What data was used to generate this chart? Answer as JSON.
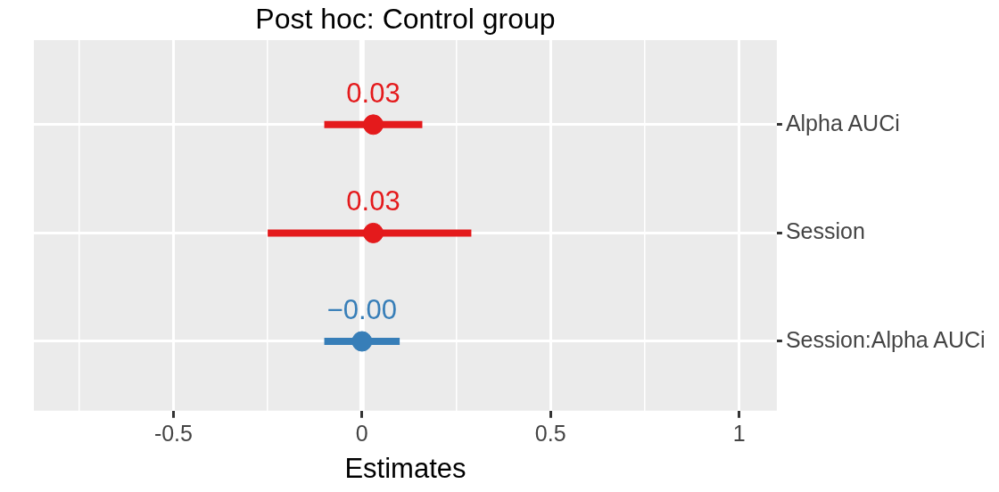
{
  "chart_data": {
    "type": "scatter",
    "orientation": "horizontal",
    "title": "Post hoc: Control group",
    "xlabel": "Estimates",
    "categories": [
      "Alpha AUCi",
      "Session",
      "Session:Alpha AUCi"
    ],
    "values": [
      0.03,
      0.03,
      0
    ],
    "errors": [
      [
        -0.1,
        0.16
      ],
      [
        -0.25,
        0.29
      ],
      [
        -0.1,
        0.1
      ]
    ],
    "value_labels": [
      "0.03",
      "0.03",
      "−0.00"
    ],
    "colors": [
      "#e41a1c",
      "#e41a1c",
      "#377eb8"
    ],
    "xlim": [
      -0.87,
      1.1
    ],
    "xticks": [
      {
        "value": -0.75,
        "label": null
      },
      -0.5,
      {
        "value": -0.25,
        "label": null
      },
      0,
      {
        "value": 0.25,
        "label": null
      },
      0.5,
      {
        "value": 0.75,
        "label": null
      },
      1
    ],
    "ref_lines": [
      {
        "axis": "x",
        "value": 0,
        "color": "#ffffff"
      }
    ],
    "grid": true,
    "marker": "circle",
    "legend": false
  }
}
